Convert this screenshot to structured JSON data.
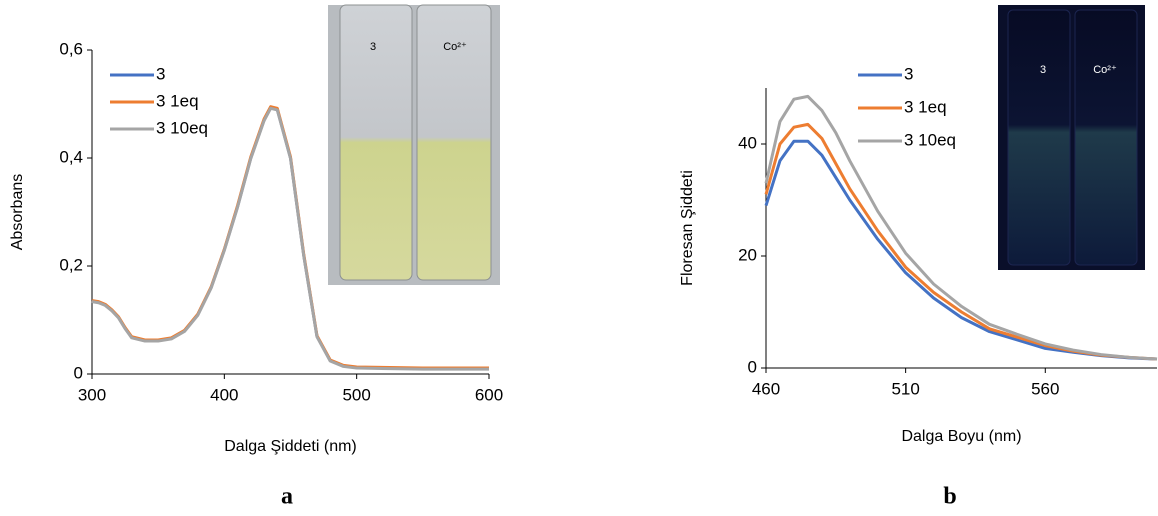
{
  "chart_data": [
    {
      "type": "line",
      "panel_label": "a",
      "x_label": "Dalga Şiddeti (nm)",
      "y_label": "Absorbans",
      "annotations": [
        "3",
        "Co²⁺"
      ],
      "x": [
        300,
        305,
        310,
        315,
        320,
        325,
        330,
        340,
        350,
        360,
        370,
        380,
        390,
        400,
        410,
        420,
        430,
        435,
        440,
        450,
        460,
        470,
        480,
        490,
        500,
        525,
        550,
        575,
        600
      ],
      "series": [
        {
          "name": "3",
          "color": "#4472c4",
          "values": [
            0.135,
            0.133,
            0.128,
            0.118,
            0.105,
            0.085,
            0.068,
            0.062,
            0.062,
            0.066,
            0.08,
            0.11,
            0.16,
            0.23,
            0.31,
            0.4,
            0.47,
            0.493,
            0.49,
            0.4,
            0.22,
            0.07,
            0.025,
            0.015,
            0.012,
            0.011,
            0.01,
            0.01,
            0.01
          ]
        },
        {
          "name": "3 1eq",
          "color": "#ed7d31",
          "values": [
            0.136,
            0.134,
            0.129,
            0.119,
            0.106,
            0.086,
            0.069,
            0.063,
            0.063,
            0.067,
            0.081,
            0.111,
            0.161,
            0.231,
            0.312,
            0.402,
            0.472,
            0.495,
            0.492,
            0.402,
            0.222,
            0.071,
            0.026,
            0.016,
            0.013,
            0.012,
            0.011,
            0.011,
            0.011
          ]
        },
        {
          "name": "3 10eq",
          "color": "#a5a5a5",
          "values": [
            0.134,
            0.132,
            0.127,
            0.117,
            0.104,
            0.084,
            0.067,
            0.061,
            0.061,
            0.065,
            0.079,
            0.109,
            0.159,
            0.229,
            0.309,
            0.399,
            0.469,
            0.492,
            0.489,
            0.399,
            0.219,
            0.069,
            0.024,
            0.014,
            0.011,
            0.01,
            0.009,
            0.009,
            0.009
          ]
        }
      ],
      "xlim": [
        300,
        600
      ],
      "xticks": [
        300,
        400,
        500,
        600
      ],
      "ylim": [
        0,
        0.6
      ],
      "yticks": [
        0,
        {
          "value": 0.2,
          "label": "0,2"
        },
        {
          "value": 0.4,
          "label": "0,4"
        },
        {
          "value": 0.6,
          "label": "0,6"
        }
      ],
      "grid": false,
      "legend": "upper left"
    },
    {
      "type": "line",
      "panel_label": "b",
      "x_label": "Dalga Boyu (nm)",
      "y_label": "Floresan Şiddeti",
      "annotations": [
        "3",
        "Co²⁺"
      ],
      "x": [
        460,
        465,
        470,
        475,
        480,
        485,
        490,
        500,
        510,
        520,
        530,
        540,
        550,
        560,
        570,
        580,
        590,
        600
      ],
      "series": [
        {
          "name": "3",
          "color": "#4472c4",
          "values": [
            29,
            37,
            40.5,
            40.5,
            38,
            34,
            30,
            23,
            17,
            12.5,
            9,
            6.5,
            5,
            3.5,
            2.8,
            2.2,
            1.8,
            1.6
          ]
        },
        {
          "name": "3 1eq",
          "color": "#ed7d31",
          "values": [
            31,
            40,
            43,
            43.5,
            41,
            36.5,
            32,
            24.5,
            18,
            13.5,
            10,
            7,
            5.5,
            4,
            3,
            2.3,
            1.9,
            1.6
          ]
        },
        {
          "name": "3 10eq",
          "color": "#a5a5a5",
          "values": [
            33,
            44,
            48,
            48.5,
            46,
            42,
            37,
            28,
            20.5,
            15,
            11,
            7.8,
            6,
            4.3,
            3.2,
            2.4,
            1.9,
            1.6
          ]
        }
      ],
      "xlim": [
        460,
        600
      ],
      "xticks": [
        460,
        510,
        560
      ],
      "ylim": [
        0,
        50
      ],
      "yticks": [
        0,
        20,
        40
      ],
      "grid": false,
      "legend": "upper center"
    }
  ]
}
